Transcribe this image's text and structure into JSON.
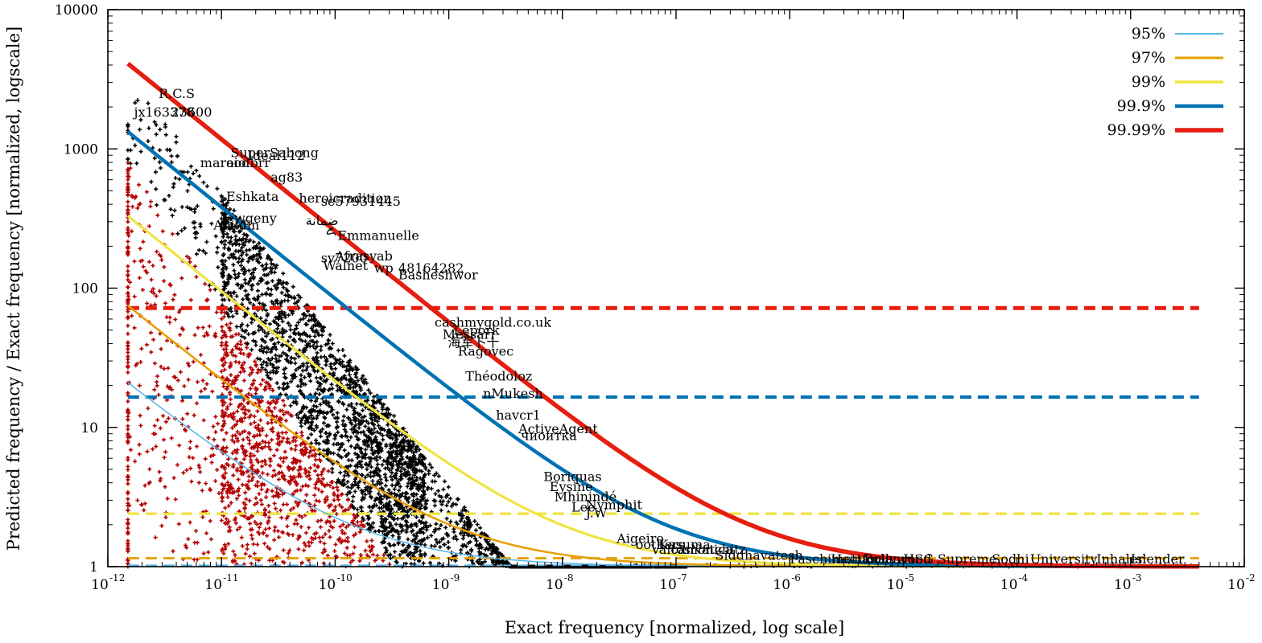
{
  "chart_data": {
    "type": "scatter",
    "title": "",
    "xlabel": "Exact frequency [normalized, log scale]",
    "ylabel": "Predicted frequency / Exact frequency [normalized, logscale]",
    "xscale": "log",
    "yscale": "log",
    "xlim": [
      1e-12,
      0.01
    ],
    "ylim": [
      1,
      10000
    ],
    "x_ticks": [
      {
        "value": 1e-12,
        "base": "10",
        "exp": "-12"
      },
      {
        "value": 1e-11,
        "base": "10",
        "exp": "-11"
      },
      {
        "value": 1e-10,
        "base": "10",
        "exp": "-10"
      },
      {
        "value": 1e-09,
        "base": "10",
        "exp": "-9"
      },
      {
        "value": 1e-08,
        "base": "10",
        "exp": "-8"
      },
      {
        "value": 1e-07,
        "base": "10",
        "exp": "-7"
      },
      {
        "value": 1e-06,
        "base": "10",
        "exp": "-6"
      },
      {
        "value": 1e-05,
        "base": "10",
        "exp": "-5"
      },
      {
        "value": 0.0001,
        "base": "10",
        "exp": "-4"
      },
      {
        "value": 0.001,
        "base": "10",
        "exp": "-3"
      },
      {
        "value": 0.01,
        "base": "10",
        "exp": "-2"
      }
    ],
    "y_ticks": [
      {
        "value": 1,
        "label": "1"
      },
      {
        "value": 10,
        "label": "10"
      },
      {
        "value": 100,
        "label": "100"
      },
      {
        "value": 1000,
        "label": "1000"
      },
      {
        "value": 10000,
        "label": "10000"
      }
    ],
    "legend_position": "top-right",
    "series": [
      {
        "name": "95%",
        "color": "#56b4e9",
        "curve": {
          "x_start": 1.5e-12,
          "y_start": 21,
          "alpha": 0.66
        },
        "threshold": 1.02
      },
      {
        "name": "97%",
        "color": "#e69f00",
        "curve": {
          "x_start": 1.5e-12,
          "y_start": 75,
          "alpha": 0.66
        },
        "threshold": 1.15
      },
      {
        "name": "99%",
        "color": "#f0e442",
        "curve": {
          "x_start": 1.5e-12,
          "y_start": 330,
          "alpha": 0.66
        },
        "threshold": 2.4
      },
      {
        "name": "99.9%",
        "color": "#0072b2",
        "curve": {
          "x_start": 1.5e-12,
          "y_start": 1330,
          "alpha": 0.66
        },
        "threshold": 16.5
      },
      {
        "name": "99.99%",
        "color": "#e51e10",
        "curve": {
          "x_start": 1.5e-12,
          "y_start": 4100,
          "alpha": 0.66
        },
        "threshold": 72
      }
    ],
    "scatter_colors": {
      "below_threshold": "#b30000",
      "above_threshold": "#000000"
    },
    "annotations": [
      {
        "text": "R.C.S",
        "x": 2.8e-12,
        "y": 2200
      },
      {
        "text": "jx163378",
        "x": 1.7e-12,
        "y": 1620
      },
      {
        "text": "23600",
        "x": 3.6e-12,
        "y": 1620
      },
      {
        "text": "SuperSabong",
        "x": 1.2e-11,
        "y": 830
      },
      {
        "text": "Ideal112",
        "x": 1.7e-11,
        "y": 790
      },
      {
        "text": "maraio",
        "x": 6.5e-12,
        "y": 700
      },
      {
        "text": "oodbrr",
        "x": 1.1e-11,
        "y": 700
      },
      {
        "text": "ag83",
        "x": 2.7e-11,
        "y": 550
      },
      {
        "text": "Eshkata",
        "x": 1.1e-11,
        "y": 400
      },
      {
        "text": "heroicradition",
        "x": 4.8e-11,
        "y": 390
      },
      {
        "text": "se57931445",
        "x": 7.5e-11,
        "y": 370
      },
      {
        "text": "Jewgeny",
        "x": 1e-11,
        "y": 280
      },
      {
        "text": "ضمانة",
        "x": 5.5e-11,
        "y": 270
      },
      {
        "text": "Aoudin",
        "x": 8.5e-12,
        "y": 250
      },
      {
        "text": "ꦌ",
        "x": 8.3e-11,
        "y": 230
      },
      {
        "text": "Emmanuelle",
        "x": 1.05e-10,
        "y": 210
      },
      {
        "text": "Afrasyab",
        "x": 1e-10,
        "y": 150
      },
      {
        "text": "sv7200",
        "x": 7.5e-11,
        "y": 145
      },
      {
        "text": "Walnet",
        "x": 7.8e-11,
        "y": 128
      },
      {
        "text": "wp",
        "x": 2.2e-10,
        "y": 123
      },
      {
        "text": "48164282",
        "x": 3.6e-10,
        "y": 123
      },
      {
        "text": "Basheshwor",
        "x": 3.6e-10,
        "y": 110
      },
      {
        "text": "cashmygold.co.uk",
        "x": 7.5e-10,
        "y": 50
      },
      {
        "text": "Messari",
        "x": 8.8e-10,
        "y": 41
      },
      {
        "text": "Lepork",
        "x": 1.1e-09,
        "y": 44
      },
      {
        "text": "海军卜十",
        "x": 9.8e-10,
        "y": 36
      },
      {
        "text": "Ragovec",
        "x": 1.2e-09,
        "y": 31
      },
      {
        "text": "Théodoloz",
        "x": 1.4e-09,
        "y": 20.5
      },
      {
        "text": "nMukesh",
        "x": 2e-09,
        "y": 15.5
      },
      {
        "text": "havcr1",
        "x": 2.6e-09,
        "y": 10.8
      },
      {
        "text": "ActiveAgent",
        "x": 4.1e-09,
        "y": 8.6
      },
      {
        "text": "чиоитка",
        "x": 4.3e-09,
        "y": 7.7
      },
      {
        "text": "Boriquas",
        "x": 6.8e-09,
        "y": 3.9
      },
      {
        "text": "Eysine",
        "x": 7.7e-09,
        "y": 3.3
      },
      {
        "text": "Mhinindé",
        "x": 8.5e-09,
        "y": 2.8
      },
      {
        "text": "Nymphit",
        "x": 1.6e-08,
        "y": 2.45
      },
      {
        "text": "Lee",
        "x": 1.2e-08,
        "y": 2.35
      },
      {
        "text": "J.W",
        "x": 1.6e-08,
        "y": 2.15
      },
      {
        "text": "Aigeiro",
        "x": 3e-08,
        "y": 1.4
      },
      {
        "text": "oothers",
        "x": 4.4e-08,
        "y": 1.27
      },
      {
        "text": "Kasuma",
        "x": 7e-08,
        "y": 1.27
      },
      {
        "text": "Valcamonica",
        "x": 6e-08,
        "y": 1.17
      },
      {
        "text": "tosNatchitz",
        "x": 9e-08,
        "y": 1.17
      },
      {
        "text": "Siddhavatesh",
        "x": 2.2e-07,
        "y": 1.06
      },
      {
        "text": "Paschimottana",
        "x": 1e-06,
        "y": 1.0
      },
      {
        "text": "Heinforlaurn",
        "x": 2.3e-06,
        "y": 1.0
      },
      {
        "text": "Bollywood",
        "x": 4.5e-06,
        "y": 1.0
      },
      {
        "text": "HSG",
        "x": 1e-05,
        "y": 1.0
      },
      {
        "text": "Supreme",
        "x": 2e-05,
        "y": 1.0
      },
      {
        "text": "Sodhi",
        "x": 6e-05,
        "y": 1.0
      },
      {
        "text": "University",
        "x": 0.00013,
        "y": 1.0
      },
      {
        "text": "Inhaler",
        "x": 0.0005,
        "y": 1.0
      },
      {
        "text": "Islender",
        "x": 0.001,
        "y": 1.0
      }
    ]
  }
}
